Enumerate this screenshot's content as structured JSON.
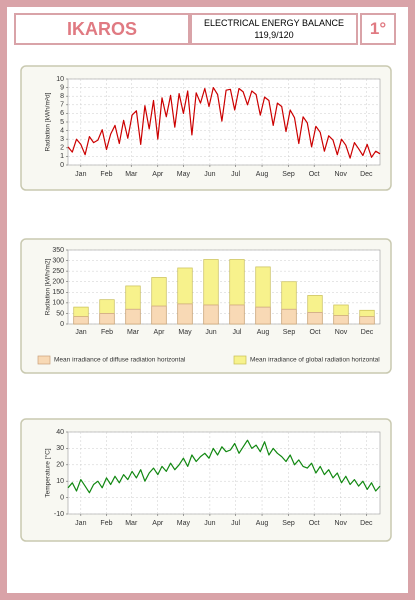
{
  "header": {
    "title": "IKAROS",
    "line1": "ELECTRICAL ENERGY BALANCE",
    "line2": "119,9/120",
    "page": "1°"
  },
  "chart_data": [
    {
      "type": "line",
      "y_label": "Radiation [kWh/m²d]",
      "color": "#cc0000",
      "x": [
        1,
        6,
        11,
        16,
        21,
        26,
        31,
        36,
        41,
        46,
        51,
        56,
        61,
        66,
        71,
        76,
        81,
        86,
        91,
        96,
        101,
        106,
        111,
        116,
        121,
        126,
        131,
        136,
        141,
        146,
        151,
        156,
        161,
        166,
        171,
        176,
        181,
        186,
        191,
        196,
        201,
        206,
        211,
        216,
        221,
        226,
        231,
        236,
        241,
        246,
        251,
        256,
        261,
        266,
        271,
        276,
        281,
        286,
        291,
        296,
        301,
        306,
        311,
        316,
        321,
        326,
        331,
        336,
        341,
        346,
        351,
        356,
        361,
        366
      ],
      "values": [
        2.1,
        1.5,
        3.0,
        2.4,
        1.2,
        3.3,
        2.6,
        2.9,
        4.1,
        1.8,
        3.6,
        4.6,
        2.5,
        5.2,
        3.1,
        5.8,
        6.3,
        2.4,
        6.9,
        4.2,
        7.5,
        3.0,
        7.8,
        5.6,
        8.1,
        4.4,
        8.3,
        6.0,
        8.6,
        3.5,
        8.4,
        7.2,
        8.9,
        6.8,
        9.0,
        8.2,
        5.1,
        8.7,
        8.8,
        6.4,
        8.9,
        8.5,
        7.0,
        8.6,
        8.2,
        5.8,
        7.9,
        7.5,
        4.6,
        7.2,
        6.8,
        3.9,
        6.4,
        5.5,
        2.5,
        5.6,
        4.9,
        2.1,
        4.5,
        3.8,
        1.6,
        3.4,
        2.9,
        1.2,
        3.0,
        2.3,
        0.8,
        2.6,
        1.9,
        1.1,
        2.4,
        0.9,
        1.6,
        1.3
      ],
      "xlim": [
        1,
        366
      ],
      "xticks": [
        {
          "value": 16,
          "label": "Jan"
        },
        {
          "value": 46,
          "label": "Feb"
        },
        {
          "value": 75,
          "label": "Mar"
        },
        {
          "value": 106,
          "label": "Apr"
        },
        {
          "value": 136,
          "label": "May"
        },
        {
          "value": 167,
          "label": "Jun"
        },
        {
          "value": 197,
          "label": "Jul"
        },
        {
          "value": 228,
          "label": "Aug"
        },
        {
          "value": 259,
          "label": "Sep"
        },
        {
          "value": 289,
          "label": "Oct"
        },
        {
          "value": 320,
          "label": "Nov"
        },
        {
          "value": 350,
          "label": "Dec"
        }
      ],
      "ylim": [
        0,
        10
      ],
      "yticks": [
        0,
        1,
        2,
        3,
        4,
        5,
        6,
        7,
        8,
        9,
        10
      ],
      "grid": true
    },
    {
      "type": "bar",
      "y_label": "Radiation [kWh/m2]",
      "categories": [
        "Jan",
        "Feb",
        "Mar",
        "Apr",
        "May",
        "Jun",
        "Jul",
        "Aug",
        "Sep",
        "Oct",
        "Nov",
        "Dec"
      ],
      "series": [
        {
          "name": "Mean irradiance of global radiation horizontal",
          "color": "#f7f28c",
          "values": [
            80,
            115,
            180,
            220,
            265,
            305,
            305,
            270,
            200,
            135,
            90,
            65
          ]
        },
        {
          "name": "Mean irradiance of diffuse radiation horizontal",
          "color": "#f8d9b5",
          "values": [
            35,
            50,
            70,
            85,
            95,
            90,
            90,
            80,
            70,
            55,
            40,
            35
          ]
        }
      ],
      "ylim": [
        0,
        350
      ],
      "yticks": [
        0,
        50,
        100,
        150,
        200,
        250,
        300,
        350
      ],
      "grid": true,
      "legend": "bottom"
    },
    {
      "type": "line",
      "y_label": "Temperature [°C]",
      "color": "#118811",
      "x": [
        1,
        6,
        11,
        16,
        21,
        26,
        31,
        36,
        41,
        46,
        51,
        56,
        61,
        66,
        71,
        76,
        81,
        86,
        91,
        96,
        101,
        106,
        111,
        116,
        121,
        126,
        131,
        136,
        141,
        146,
        151,
        156,
        161,
        166,
        171,
        176,
        181,
        186,
        191,
        196,
        201,
        206,
        211,
        216,
        221,
        226,
        231,
        236,
        241,
        246,
        251,
        256,
        261,
        266,
        271,
        276,
        281,
        286,
        291,
        296,
        301,
        306,
        311,
        316,
        321,
        326,
        331,
        336,
        341,
        346,
        351,
        356,
        361,
        366
      ],
      "values": [
        6,
        9,
        4,
        11,
        7,
        3,
        8,
        10,
        6,
        12,
        8,
        13,
        9,
        14,
        11,
        16,
        12,
        17,
        10,
        15,
        18,
        14,
        19,
        16,
        21,
        17,
        20,
        24,
        19,
        26,
        22,
        25,
        27,
        24,
        30,
        26,
        31,
        28,
        29,
        33,
        27,
        31,
        35,
        30,
        32,
        28,
        34,
        26,
        30,
        27,
        25,
        22,
        26,
        20,
        23,
        19,
        18,
        21,
        15,
        19,
        14,
        17,
        12,
        15,
        9,
        13,
        8,
        11,
        7,
        10,
        5,
        9,
        4,
        7
      ],
      "xlim": [
        1,
        366
      ],
      "xticks": [
        {
          "value": 16,
          "label": "Jan"
        },
        {
          "value": 46,
          "label": "Feb"
        },
        {
          "value": 75,
          "label": "Mar"
        },
        {
          "value": 106,
          "label": "Apr"
        },
        {
          "value": 136,
          "label": "May"
        },
        {
          "value": 167,
          "label": "Jun"
        },
        {
          "value": 197,
          "label": "Jul"
        },
        {
          "value": 228,
          "label": "Aug"
        },
        {
          "value": 259,
          "label": "Sep"
        },
        {
          "value": 289,
          "label": "Oct"
        },
        {
          "value": 320,
          "label": "Nov"
        },
        {
          "value": 350,
          "label": "Dec"
        }
      ],
      "ylim": [
        -10,
        40
      ],
      "yticks": [
        -10,
        0,
        10,
        20,
        30,
        40
      ],
      "grid": true
    }
  ]
}
